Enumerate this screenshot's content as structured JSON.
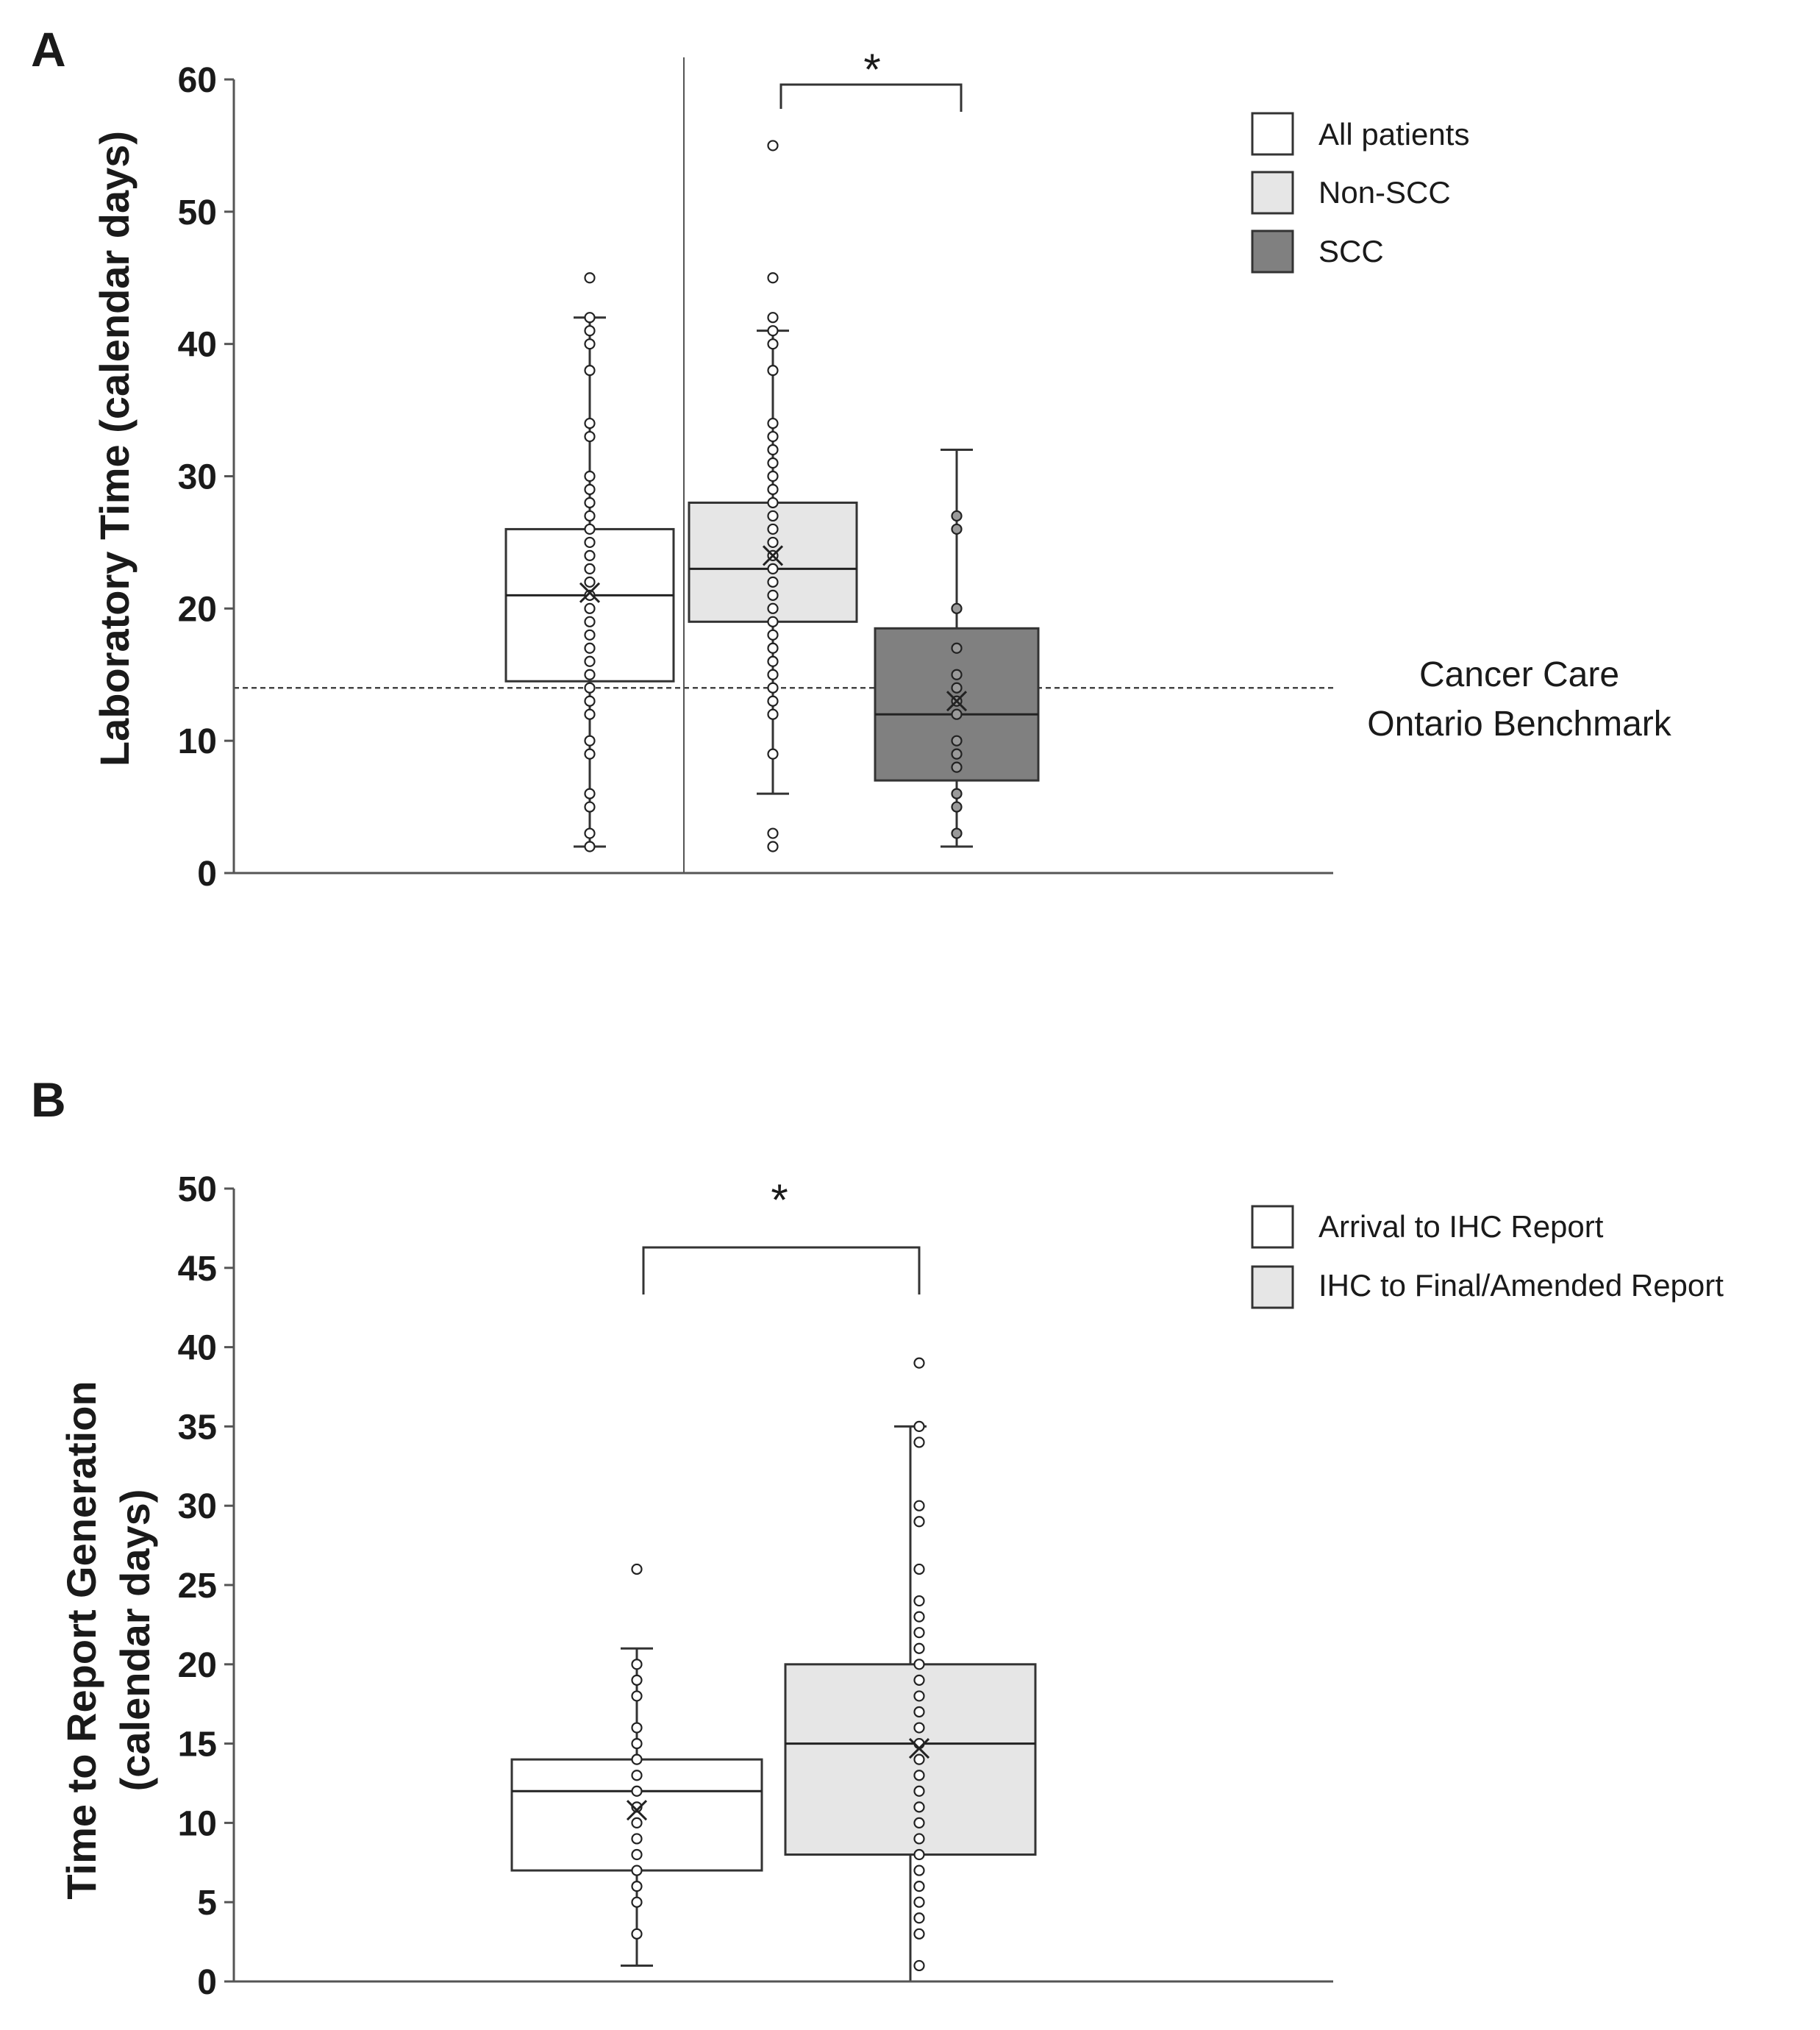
{
  "chart_data": [
    {
      "type": "box",
      "panel": "A",
      "ylabel": "Laboratory Time (calendar days)",
      "ylim": [
        0,
        60
      ],
      "yticks": [
        0,
        10,
        20,
        30,
        40,
        50,
        60
      ],
      "legend": [
        "All patients",
        "Non-SCC",
        "SCC"
      ],
      "legend_position": "top-right",
      "colors": {
        "All patients": "#ffffff",
        "Non-SCC": "#e6e6e6",
        "SCC": "#808080"
      },
      "benchmark": {
        "value": 14,
        "label_lines": [
          "Cancer Care",
          "Ontario Benchmark"
        ]
      },
      "significance": {
        "between": [
          "Non-SCC",
          "SCC"
        ],
        "label": "*"
      },
      "series": [
        {
          "name": "All patients",
          "min": 2,
          "q1": 14.5,
          "median": 21,
          "q3": 26,
          "max": 42,
          "mean": 21.2,
          "points": [
            2,
            3,
            5,
            6,
            9,
            10,
            12,
            13,
            14,
            15,
            16,
            17,
            18,
            19,
            20,
            21,
            22,
            23,
            24,
            25,
            26,
            27,
            28,
            29,
            30,
            33,
            34,
            38,
            40,
            41,
            42,
            45
          ]
        },
        {
          "name": "Non-SCC",
          "min": 6,
          "q1": 19,
          "median": 23,
          "q3": 28,
          "max": 41,
          "mean": 24,
          "points": [
            2,
            3,
            9,
            12,
            13,
            14,
            15,
            16,
            17,
            18,
            19,
            20,
            21,
            22,
            23,
            24,
            25,
            26,
            27,
            28,
            29,
            30,
            31,
            32,
            33,
            34,
            38,
            40,
            41,
            42,
            45,
            55
          ]
        },
        {
          "name": "SCC",
          "min": 2,
          "q1": 7,
          "median": 12,
          "q3": 18.5,
          "max": 32,
          "mean": 13,
          "points": [
            3,
            5,
            6,
            8,
            9,
            10,
            12,
            13,
            14,
            15,
            17,
            20,
            26,
            27
          ]
        }
      ]
    },
    {
      "type": "box",
      "panel": "B",
      "ylabel": "Time to Report Generation (calendar days)",
      "ylabel_lines": [
        "Time to Report Generation",
        "(calendar days)"
      ],
      "ylim": [
        0,
        50
      ],
      "yticks": [
        0,
        5,
        10,
        15,
        20,
        25,
        30,
        35,
        40,
        45,
        50
      ],
      "legend": [
        "Arrival to IHC Report",
        "IHC to Final/Amended Report"
      ],
      "legend_position": "top-right",
      "colors": {
        "Arrival to IHC Report": "#ffffff",
        "IHC to Final/Amended Report": "#e6e6e6"
      },
      "significance": {
        "between": [
          "Arrival to IHC Report",
          "IHC to Final/Amended Report"
        ],
        "label": "*"
      },
      "series": [
        {
          "name": "Arrival to IHC Report",
          "min": 1,
          "q1": 7,
          "median": 12,
          "q3": 14,
          "max": 21,
          "mean": 10.8,
          "points": [
            3,
            5,
            6,
            7,
            8,
            9,
            10,
            11,
            12,
            13,
            14,
            15,
            16,
            18,
            19,
            20,
            26
          ]
        },
        {
          "name": "IHC to Final/Amended Report",
          "min": 0,
          "q1": 8,
          "median": 15,
          "q3": 20,
          "max": 35,
          "mean": 14.7,
          "points": [
            1,
            3,
            4,
            5,
            6,
            7,
            8,
            9,
            10,
            11,
            12,
            13,
            14,
            15,
            16,
            17,
            18,
            19,
            20,
            21,
            22,
            23,
            24,
            26,
            29,
            30,
            34,
            35,
            39
          ]
        }
      ]
    }
  ]
}
